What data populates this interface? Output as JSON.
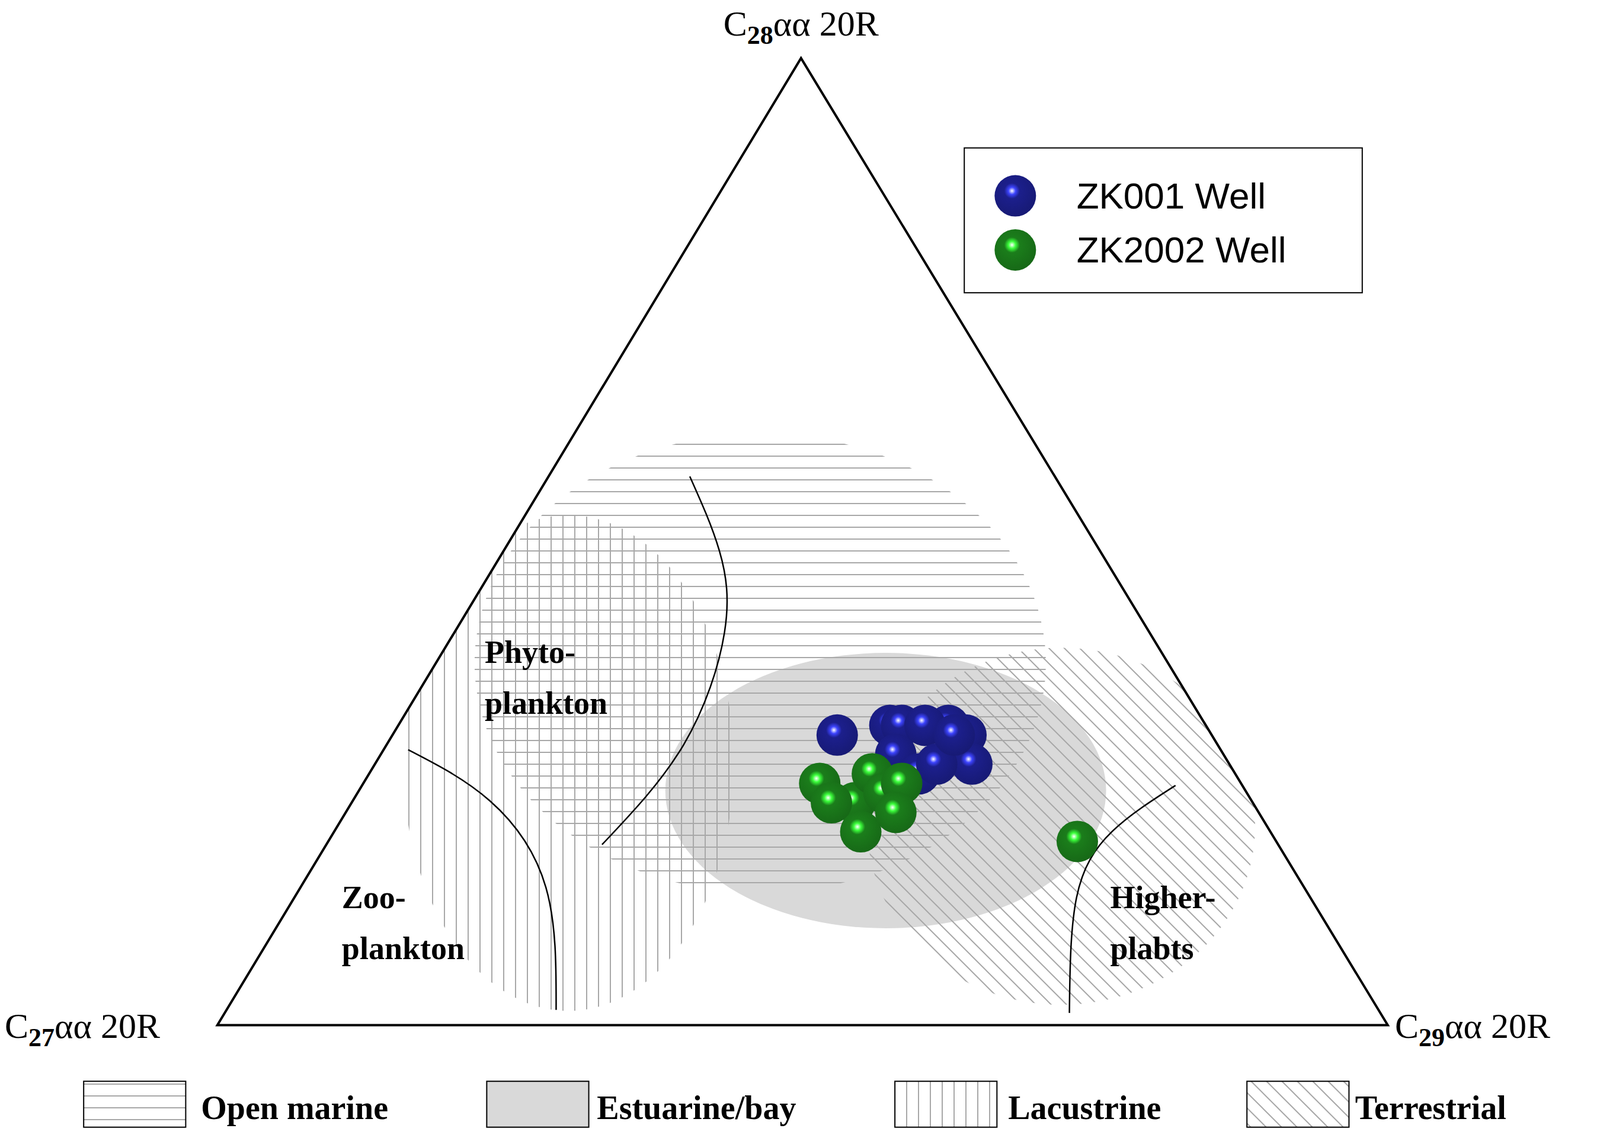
{
  "chart_data": {
    "type": "ternary",
    "axes": [
      "C27αα 20R",
      "C28αα 20R",
      "C29αα 20R"
    ],
    "tick_labels": false,
    "legend": "upper right",
    "series": [
      {
        "name": "ZK001 Well",
        "color": "#1c1f8c",
        "marker": "sphere",
        "values": [
          [
            32,
            30,
            38
          ],
          [
            27,
            31,
            42
          ],
          [
            26,
            31,
            43
          ],
          [
            22,
            31,
            47
          ],
          [
            24,
            31,
            45
          ],
          [
            21,
            30,
            49
          ],
          [
            22,
            27,
            51
          ],
          [
            28,
            28,
            44
          ],
          [
            27,
            26,
            47
          ],
          [
            25,
            27,
            48
          ],
          [
            22,
            30,
            48
          ]
        ]
      },
      {
        "name": "ZK2002 Well",
        "color": "#1b7d1b",
        "marker": "sphere",
        "values": [
          [
            36,
            25,
            39
          ],
          [
            34,
            23,
            43
          ],
          [
            31,
            26,
            43
          ],
          [
            31,
            24,
            45
          ],
          [
            29,
            25,
            46
          ],
          [
            35,
            20,
            45
          ],
          [
            31,
            22,
            47
          ],
          [
            36,
            23,
            41
          ],
          [
            17,
            19,
            64
          ]
        ]
      }
    ],
    "fields": [
      [
        "Phyto-",
        "plankton"
      ],
      [
        "Zoo-",
        "plankton"
      ],
      [
        "Higher-",
        "plabts"
      ]
    ],
    "environments": [
      "Open marine",
      "Estuarine/bay",
      "Lacustrine",
      "Terrestrial"
    ]
  }
}
